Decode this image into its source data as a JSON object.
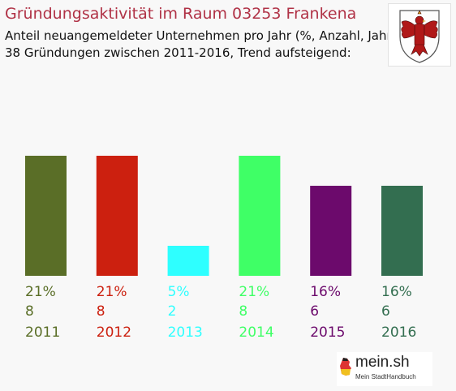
{
  "header": {
    "title": "Gründungsaktivität im Raum 03253 Frankena",
    "subtitle_line1": "Anteil neuangemeldeter Unternehmen pro Jahr (%, Anzahl, Jahr)",
    "subtitle_line2": "38 Gründungen zwischen 2011-2016, Trend aufsteigend:"
  },
  "crest": {
    "icon": "red-eagle-coat-of-arms-icon",
    "color": "#b01818"
  },
  "logo": {
    "name": "mein.sh",
    "tagline": "Mein StadtHandbuch",
    "icon": "germany-map-icon"
  },
  "chart_data": {
    "type": "bar",
    "categories": [
      "2011",
      "2012",
      "2013",
      "2014",
      "2015",
      "2016"
    ],
    "percent_labels": [
      "21%",
      "21%",
      "5%",
      "21%",
      "16%",
      "16%"
    ],
    "count_labels": [
      "8",
      "8",
      "2",
      "8",
      "6",
      "6"
    ],
    "values": [
      8,
      8,
      2,
      8,
      6,
      6
    ],
    "colors": [
      "#5a6e27",
      "#cc200f",
      "#2effff",
      "#3fff66",
      "#6c0a6c",
      "#336e50"
    ],
    "ylim": [
      0,
      8
    ]
  }
}
